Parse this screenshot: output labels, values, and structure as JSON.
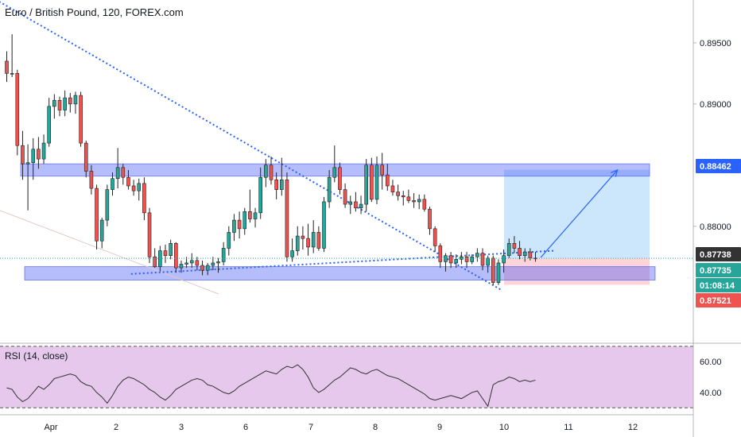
{
  "header": {
    "title": "Euro / British Pound, 120, FOREX.com"
  },
  "rsi": {
    "label": "RSI (14, close)"
  },
  "colors": {
    "up": "#26a69a",
    "down": "#ef5350",
    "zone": "#3f51f5",
    "rsi_fill": "#e1bee7",
    "rsi_line": "#333333",
    "trend": "#2962ff",
    "price_line": "#26a69a",
    "target_fill": "#bbdefb",
    "stop_fill": "#ffcdd2"
  },
  "chart_data": [
    {
      "type": "candlestick",
      "title": "Euro / British Pound, 120, FOREX.com",
      "x_tick_labels": [
        "Apr",
        "2",
        "3",
        "6",
        "7",
        "8",
        "9",
        "10",
        "11",
        "12"
      ],
      "y_ticks": [
        0.895,
        0.89,
        0.88
      ],
      "y_tick_labels": [
        "0.89500",
        "0.89000",
        "0.88000"
      ],
      "ylim": [
        0.8705,
        0.8985
      ],
      "grid": false,
      "price_labels": [
        {
          "text": "0.88462",
          "value": 0.88462,
          "color": "#2962ff"
        },
        {
          "text": "0.87738",
          "value": 0.87738,
          "color": "#333333"
        },
        {
          "text": "0.87735",
          "value": 0.87735,
          "color": "#26a69a"
        },
        {
          "text": "01:08:14",
          "value": 0.8762,
          "color": "#26a69a"
        },
        {
          "text": "0.87521",
          "value": 0.87521,
          "color": "#ef5350"
        }
      ],
      "zones": [
        {
          "name": "resistance",
          "y_low": 0.8841,
          "y_high": 0.8851
        },
        {
          "name": "support",
          "y_low": 0.8756,
          "y_high": 0.8767
        }
      ],
      "position": {
        "entry": 0.87738,
        "target": 0.88462,
        "stop": 0.87521
      },
      "candles": [
        [
          0.8935,
          0.8943,
          0.8918,
          0.8925
        ],
        [
          0.8925,
          0.8957,
          0.8922,
          0.8925
        ],
        [
          0.8925,
          0.8928,
          0.8858,
          0.8866
        ],
        [
          0.8866,
          0.8878,
          0.8838,
          0.8851
        ],
        [
          0.8851,
          0.8867,
          0.8813,
          0.8852
        ],
        [
          0.8852,
          0.8872,
          0.8838,
          0.8863
        ],
        [
          0.8863,
          0.8873,
          0.8847,
          0.8855
        ],
        [
          0.8855,
          0.8875,
          0.8851,
          0.8868
        ],
        [
          0.8868,
          0.8905,
          0.8865,
          0.8898
        ],
        [
          0.8898,
          0.8908,
          0.8888,
          0.8903
        ],
        [
          0.8903,
          0.8906,
          0.889,
          0.8895
        ],
        [
          0.8895,
          0.8911,
          0.889,
          0.8905
        ],
        [
          0.8905,
          0.8909,
          0.8893,
          0.89
        ],
        [
          0.89,
          0.891,
          0.8892,
          0.8907
        ],
        [
          0.8907,
          0.891,
          0.8865,
          0.8868
        ],
        [
          0.8868,
          0.887,
          0.884,
          0.8845
        ],
        [
          0.8845,
          0.885,
          0.8826,
          0.8831
        ],
        [
          0.8831,
          0.8834,
          0.8781,
          0.8788
        ],
        [
          0.8788,
          0.8807,
          0.8782,
          0.8805
        ],
        [
          0.8805,
          0.8834,
          0.88,
          0.883
        ],
        [
          0.883,
          0.8844,
          0.8825,
          0.8839
        ],
        [
          0.8839,
          0.8864,
          0.8831,
          0.8848
        ],
        [
          0.8848,
          0.8851,
          0.8834,
          0.884
        ],
        [
          0.884,
          0.8846,
          0.883,
          0.8833
        ],
        [
          0.8833,
          0.8838,
          0.8825,
          0.8829
        ],
        [
          0.8829,
          0.8839,
          0.8821,
          0.8835
        ],
        [
          0.8835,
          0.884,
          0.8805,
          0.8811
        ],
        [
          0.8811,
          0.8815,
          0.877,
          0.8775
        ],
        [
          0.8775,
          0.8782,
          0.8766,
          0.8767
        ],
        [
          0.8767,
          0.8784,
          0.8763,
          0.878
        ],
        [
          0.878,
          0.8785,
          0.877,
          0.8776
        ],
        [
          0.8776,
          0.8789,
          0.8773,
          0.8786
        ],
        [
          0.8786,
          0.8787,
          0.8762,
          0.8766
        ],
        [
          0.8766,
          0.8772,
          0.8762,
          0.8769
        ],
        [
          0.8769,
          0.8775,
          0.8766,
          0.877
        ],
        [
          0.877,
          0.8778,
          0.8766,
          0.8772
        ],
        [
          0.8772,
          0.8775,
          0.8764,
          0.8768
        ],
        [
          0.8768,
          0.8772,
          0.876,
          0.8764
        ],
        [
          0.8764,
          0.877,
          0.876,
          0.8768
        ],
        [
          0.8768,
          0.8775,
          0.8764,
          0.877
        ],
        [
          0.877,
          0.8774,
          0.8762,
          0.8771
        ],
        [
          0.8771,
          0.8787,
          0.8768,
          0.8782
        ],
        [
          0.8782,
          0.88,
          0.8776,
          0.8795
        ],
        [
          0.8795,
          0.881,
          0.8788,
          0.8805
        ],
        [
          0.8805,
          0.8812,
          0.879,
          0.8798
        ],
        [
          0.8798,
          0.8815,
          0.8793,
          0.8812
        ],
        [
          0.8812,
          0.883,
          0.8803,
          0.8806
        ],
        [
          0.8806,
          0.8815,
          0.8799,
          0.8811
        ],
        [
          0.8811,
          0.8848,
          0.8806,
          0.884
        ],
        [
          0.884,
          0.8855,
          0.8832,
          0.885
        ],
        [
          0.885,
          0.8857,
          0.8834,
          0.8838
        ],
        [
          0.8838,
          0.8844,
          0.8822,
          0.883
        ],
        [
          0.883,
          0.8856,
          0.8825,
          0.8838
        ],
        [
          0.8838,
          0.8844,
          0.8771,
          0.8775
        ],
        [
          0.8775,
          0.879,
          0.8771,
          0.878
        ],
        [
          0.878,
          0.88,
          0.8776,
          0.8792
        ],
        [
          0.8792,
          0.88,
          0.8781,
          0.879
        ],
        [
          0.879,
          0.8802,
          0.8776,
          0.8783
        ],
        [
          0.8783,
          0.8805,
          0.8778,
          0.8795
        ],
        [
          0.8795,
          0.88,
          0.878,
          0.8782
        ],
        [
          0.8782,
          0.8824,
          0.8779,
          0.882
        ],
        [
          0.882,
          0.8846,
          0.8815,
          0.884
        ],
        [
          0.884,
          0.8866,
          0.8836,
          0.8848
        ],
        [
          0.8848,
          0.8852,
          0.8826,
          0.883
        ],
        [
          0.883,
          0.8835,
          0.8815,
          0.8818
        ],
        [
          0.8818,
          0.8825,
          0.881,
          0.882
        ],
        [
          0.882,
          0.8828,
          0.8812,
          0.8815
        ],
        [
          0.8815,
          0.8825,
          0.881,
          0.8818
        ],
        [
          0.8818,
          0.8855,
          0.8812,
          0.885
        ],
        [
          0.885,
          0.8856,
          0.882,
          0.8822
        ],
        [
          0.8822,
          0.8857,
          0.8818,
          0.885
        ],
        [
          0.885,
          0.886,
          0.883,
          0.8842
        ],
        [
          0.8842,
          0.8851,
          0.8829,
          0.8833
        ],
        [
          0.8833,
          0.8838,
          0.8825,
          0.8828
        ],
        [
          0.8828,
          0.8834,
          0.8821,
          0.8825
        ],
        [
          0.8825,
          0.8829,
          0.8817,
          0.8824
        ],
        [
          0.8824,
          0.883,
          0.8819,
          0.8821
        ],
        [
          0.8821,
          0.8827,
          0.8815,
          0.882
        ],
        [
          0.882,
          0.8826,
          0.8814,
          0.8822
        ],
        [
          0.8822,
          0.8826,
          0.8812,
          0.8814
        ],
        [
          0.8814,
          0.8816,
          0.8793,
          0.8798
        ],
        [
          0.8798,
          0.88,
          0.8779,
          0.8784
        ],
        [
          0.8784,
          0.8786,
          0.8766,
          0.8771
        ],
        [
          0.8771,
          0.8778,
          0.8763,
          0.8776
        ],
        [
          0.8776,
          0.8779,
          0.8766,
          0.877
        ],
        [
          0.877,
          0.8777,
          0.8766,
          0.8773
        ],
        [
          0.8773,
          0.8779,
          0.8769,
          0.8775
        ],
        [
          0.8775,
          0.8779,
          0.8766,
          0.8771
        ],
        [
          0.8771,
          0.8777,
          0.8769,
          0.8775
        ],
        [
          0.8775,
          0.8782,
          0.8771,
          0.8778
        ],
        [
          0.8778,
          0.8782,
          0.8764,
          0.8768
        ],
        [
          0.8768,
          0.8776,
          0.8762,
          0.8774
        ],
        [
          0.8774,
          0.8776,
          0.8752,
          0.8754
        ],
        [
          0.8754,
          0.8773,
          0.8752,
          0.877
        ],
        [
          0.877,
          0.8781,
          0.8762,
          0.8776
        ],
        [
          0.8776,
          0.879,
          0.8774,
          0.8786
        ],
        [
          0.8786,
          0.8792,
          0.8778,
          0.8782
        ],
        [
          0.8782,
          0.8788,
          0.8773,
          0.8776
        ],
        [
          0.8776,
          0.8782,
          0.8771,
          0.8779
        ],
        [
          0.8779,
          0.8782,
          0.8772,
          0.8774
        ],
        [
          0.8774,
          0.8779,
          0.8771,
          0.87735
        ]
      ],
      "annotations": [
        {
          "name": "upper-trendline",
          "points": [
            [
              -6,
              0.8995
            ],
            [
              93.5,
              0.8748
            ]
          ]
        },
        {
          "name": "lower-trendline",
          "points": [
            [
              23.5,
              0.8761
            ],
            [
              103.5,
              0.878
            ]
          ]
        },
        {
          "name": "projection-arrow",
          "points": [
            [
              101,
              0.87745
            ],
            [
              115.5,
              0.8846
            ]
          ]
        }
      ]
    },
    {
      "type": "line",
      "title": "RSI (14, close)",
      "y_ticks": [
        60,
        40
      ],
      "y_tick_labels": [
        "60.00",
        "40.00"
      ],
      "ylim": [
        26,
        72
      ],
      "band": [
        30,
        70
      ],
      "values": [
        43,
        42,
        37,
        34,
        36,
        40,
        44,
        42,
        45,
        49,
        50,
        51,
        52,
        51,
        47,
        45,
        44,
        40,
        37,
        33,
        38,
        44,
        48,
        50,
        49,
        47,
        45,
        42,
        40,
        37,
        35,
        38,
        42,
        44,
        46,
        48,
        49,
        48,
        45,
        44,
        42,
        40,
        39,
        41,
        44,
        46,
        48,
        50,
        52,
        54,
        53,
        52,
        55,
        57,
        56,
        58,
        55,
        50,
        43,
        40,
        42,
        45,
        48,
        50,
        53,
        56,
        55,
        53,
        52,
        54,
        55,
        53,
        51,
        50,
        49,
        47,
        45,
        43,
        41,
        39,
        36,
        35,
        36,
        37,
        38,
        37,
        36,
        38,
        40,
        41,
        36,
        31,
        45,
        47,
        48,
        50,
        49,
        47,
        48,
        47,
        48
      ]
    }
  ]
}
